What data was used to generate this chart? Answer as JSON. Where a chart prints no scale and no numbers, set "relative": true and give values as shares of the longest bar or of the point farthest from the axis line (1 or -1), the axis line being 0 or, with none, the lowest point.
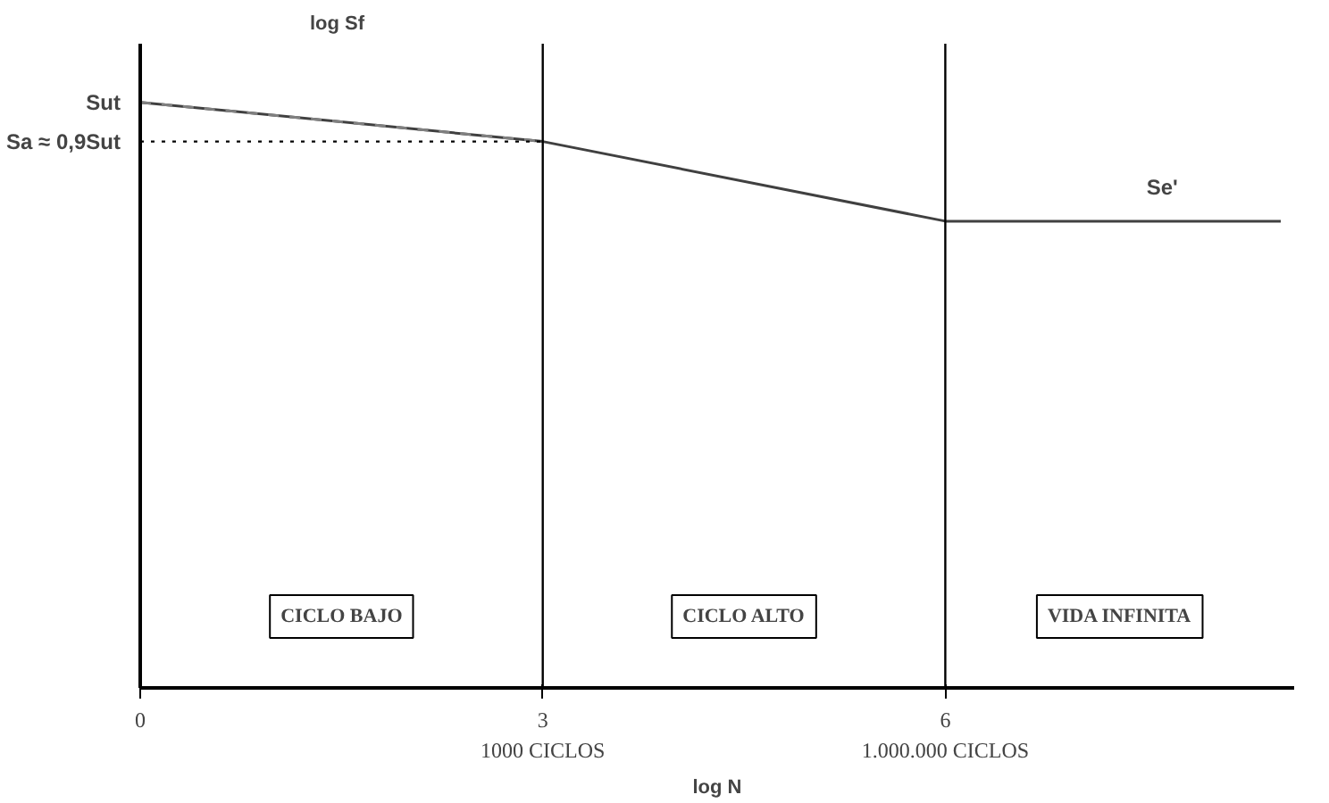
{
  "chart_data": {
    "type": "line",
    "relative": true,
    "xlabel": "log N",
    "ylabel": "log Sf",
    "x": [
      0,
      3,
      6,
      8.5
    ],
    "series": [
      {
        "color": "#404040",
        "values": [
          1,
          0.933,
          0.797,
          0.797
        ],
        "line_style": "solid"
      },
      {
        "color": "#808080",
        "x": [
          0,
          3
        ],
        "values": [
          1,
          0.933
        ],
        "line_style": "dashed"
      }
    ],
    "xlim": [
      0,
      8.6
    ],
    "xticks": [
      0,
      3,
      6
    ],
    "ref_lines": [
      {
        "axis": "y",
        "value": 0.933,
        "label": "Sa ≈ 0,9Sut",
        "line_style": "dotted",
        "color": "#000000"
      },
      {
        "axis": "x",
        "value": 3,
        "color": "#000000"
      },
      {
        "axis": "x",
        "value": 6,
        "color": "#000000"
      }
    ],
    "annotations": [
      {
        "text": "Sut",
        "x": 0,
        "y": 1
      },
      {
        "text": "Se'",
        "x": 7.5,
        "y": 0.797
      },
      {
        "text": "1000 CICLOS",
        "x": 3,
        "y": 0
      },
      {
        "text": "1.000.000 CICLOS",
        "x": 6,
        "y": 0
      },
      "CICLO BAJO",
      "CICLO ALTO",
      "VIDA INFINITA"
    ],
    "grid": false,
    "marker": "none"
  }
}
